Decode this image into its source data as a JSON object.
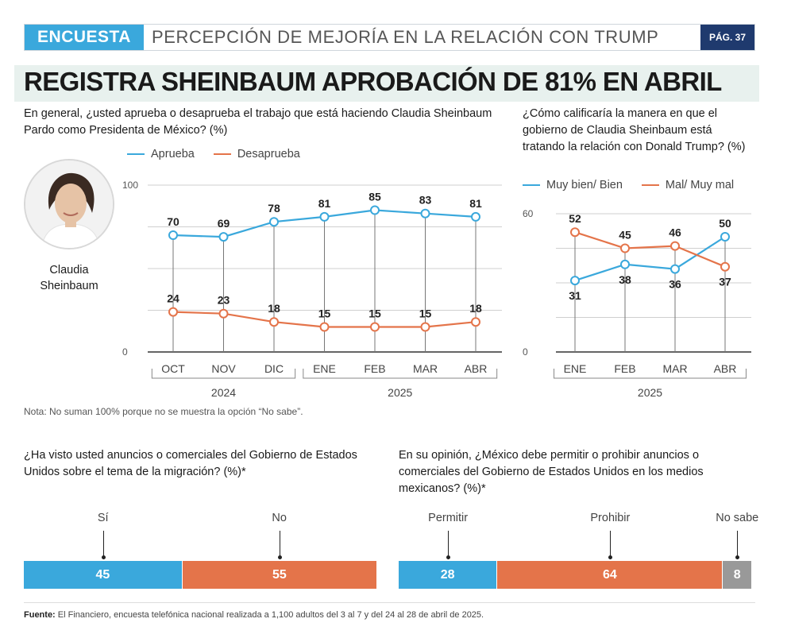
{
  "header": {
    "tag": "ENCUESTA",
    "title": "PERCEPCIÓN DE MEJORÍA EN LA RELACIÓN CON TRUMP",
    "page": "PÁG. 37"
  },
  "headline": "REGISTRA SHEINBAUM APROBACIÓN DE 81% EN ABRIL",
  "colors": {
    "blue": "#3aa8dc",
    "orange": "#e4744a",
    "gray": "#999999",
    "navy": "#1f3a6e"
  },
  "person": {
    "name": "Claudia Sheinbaum",
    "icon": "portrait-photo"
  },
  "note": "Nota: No suman 100% porque no se muestra la opción “No sabe”.",
  "source": {
    "label": "Fuente:",
    "text": " El Financiero, encuesta telefónica nacional realizada a 1,100 adultos del 3 al 7 y del 24 al 28 de abril de 2025."
  },
  "chart_data": [
    {
      "type": "line",
      "title": "En general, ¿usted aprueba o desaprueba el trabajo que está haciendo Claudia Sheinbaum Pardo como Presidenta de México? (%)",
      "categories": [
        "OCT",
        "NOV",
        "DIC",
        "ENE",
        "FEB",
        "MAR",
        "ABR"
      ],
      "year_groups": [
        {
          "label": "2024",
          "from": 0,
          "to": 2
        },
        {
          "label": "2025",
          "from": 3,
          "to": 6
        }
      ],
      "ylim": [
        0,
        100
      ],
      "yticks": [
        "100",
        "0"
      ],
      "legend_placement": "top-left",
      "grid": true,
      "series": [
        {
          "name": "Aprueba",
          "color": "#3aa8dc",
          "values": [
            70,
            69,
            78,
            81,
            85,
            83,
            81
          ]
        },
        {
          "name": "Desaprueba",
          "color": "#e4744a",
          "values": [
            24,
            23,
            18,
            15,
            15,
            15,
            18
          ]
        }
      ]
    },
    {
      "type": "line",
      "title": "¿Cómo calificaría la manera en que el gobierno de Claudia Sheinbaum está tratando la relación con Donald Trump? (%)",
      "categories": [
        "ENE",
        "FEB",
        "MAR",
        "ABR"
      ],
      "year_groups": [
        {
          "label": "2025",
          "from": 0,
          "to": 3
        }
      ],
      "ylim": [
        0,
        60
      ],
      "yticks": [
        "60",
        "0"
      ],
      "legend_placement": "top",
      "grid": true,
      "series": [
        {
          "name": "Muy bien/ Bien",
          "color": "#3aa8dc",
          "values": [
            31,
            38,
            36,
            50
          ]
        },
        {
          "name": "Mal/ Muy mal",
          "color": "#e4744a",
          "values": [
            52,
            45,
            46,
            37
          ]
        }
      ]
    },
    {
      "type": "bar",
      "orientation": "stacked-horizontal",
      "title": "¿Ha visto usted anuncios o comerciales del Gobierno de Estados Unidos sobre el tema de la migración? (%)*",
      "categories": [
        "Sí",
        "No"
      ],
      "values": [
        45,
        55
      ],
      "colors": [
        "#3aa8dc",
        "#e4744a"
      ]
    },
    {
      "type": "bar",
      "orientation": "stacked-horizontal",
      "title": "En su opinión, ¿México debe permitir o prohibir anuncios o comerciales del Gobierno de Estados Unidos en los medios mexicanos? (%)*",
      "categories": [
        "Permitir",
        "Prohibir",
        "No sabe"
      ],
      "values": [
        28,
        64,
        8
      ],
      "colors": [
        "#3aa8dc",
        "#e4744a",
        "#999999"
      ]
    }
  ]
}
